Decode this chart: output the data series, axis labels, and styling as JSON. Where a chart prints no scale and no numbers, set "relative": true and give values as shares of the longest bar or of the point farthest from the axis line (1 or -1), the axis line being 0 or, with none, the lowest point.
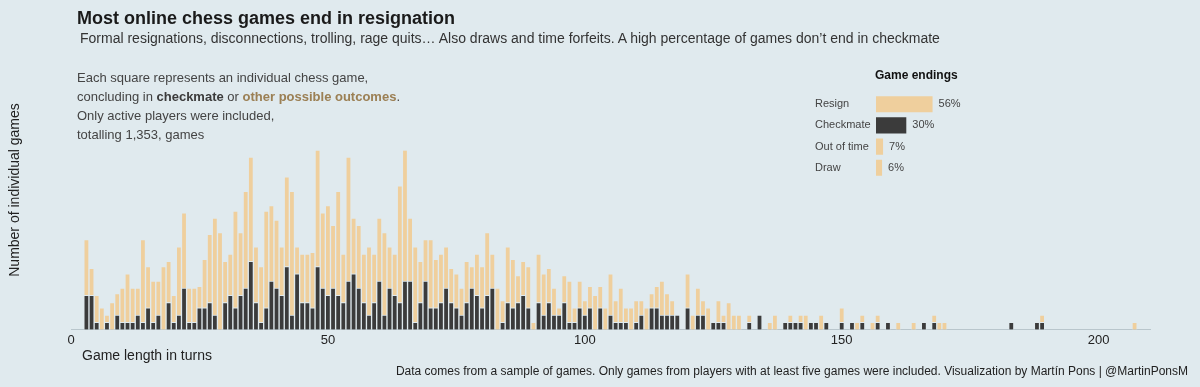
{
  "chart_data": [
    {
      "type": "bar",
      "title": "Most online chess games end in resignation",
      "subtitle": "Formal resignations, disconnections, trolling, rage quits… Also draws and time forfeits. A high percentage of games don’t end in checkmate",
      "xlabel": "Game length in turns",
      "ylabel": "Number of individual games",
      "annotations": [
        "Each square represents an individual chess game,",
        "concluding in ",
        " or ",
        ".",
        "Only active players were included,",
        "totalling 1,353, games",
        "Data comes from a sample of games. Only games from players with at least five games were included. Visualization by Martín Pons | @MartinPonsM"
      ],
      "stacked": true,
      "relative": true,
      "xlim": [
        0,
        210
      ],
      "xticks": [
        0,
        50,
        100,
        150,
        200
      ],
      "x": [
        3,
        4,
        5,
        6,
        7,
        8,
        9,
        10,
        11,
        12,
        13,
        14,
        15,
        16,
        17,
        18,
        19,
        20,
        21,
        22,
        23,
        24,
        25,
        26,
        27,
        28,
        29,
        30,
        31,
        32,
        33,
        34,
        35,
        36,
        37,
        38,
        39,
        40,
        41,
        42,
        43,
        44,
        45,
        46,
        47,
        48,
        49,
        50,
        51,
        52,
        53,
        54,
        55,
        56,
        57,
        58,
        59,
        60,
        61,
        62,
        63,
        64,
        65,
        66,
        67,
        68,
        69,
        70,
        71,
        72,
        73,
        74,
        75,
        76,
        77,
        78,
        79,
        80,
        81,
        82,
        83,
        84,
        85,
        86,
        87,
        88,
        89,
        90,
        91,
        92,
        93,
        94,
        95,
        96,
        97,
        98,
        99,
        100,
        101,
        102,
        103,
        104,
        105,
        106,
        107,
        108,
        109,
        110,
        111,
        112,
        113,
        114,
        115,
        116,
        117,
        118,
        120,
        121,
        122,
        123,
        124,
        125,
        126,
        127,
        128,
        129,
        130,
        132,
        134,
        136,
        137,
        139,
        140,
        141,
        142,
        143,
        144,
        145,
        146,
        147,
        150,
        152,
        153,
        154,
        156,
        157,
        159,
        161,
        164,
        166,
        168,
        169,
        170,
        183,
        188,
        189,
        207
      ],
      "series": [
        {
          "name": "checkmate",
          "color": "#3b3b3b",
          "values": [
            0.19,
            0.19,
            0.04,
            0,
            0.04,
            0,
            0.08,
            0.04,
            0.04,
            0.04,
            0.08,
            0.04,
            0.12,
            0.04,
            0.08,
            0,
            0.15,
            0.04,
            0.08,
            0.23,
            0.04,
            0.04,
            0.12,
            0.12,
            0.15,
            0.08,
            0,
            0.15,
            0.19,
            0.12,
            0.19,
            0.23,
            0.38,
            0.15,
            0.04,
            0.12,
            0.27,
            0.23,
            0.19,
            0.35,
            0.08,
            0.31,
            0.15,
            0.15,
            0.12,
            0.35,
            0.23,
            0.19,
            0.23,
            0.19,
            0.15,
            0.27,
            0.31,
            0.23,
            0.15,
            0.08,
            0.15,
            0.27,
            0.08,
            0.23,
            0.19,
            0.15,
            0.27,
            0.27,
            0.04,
            0.15,
            0.27,
            0.12,
            0.12,
            0.15,
            0.23,
            0.15,
            0.12,
            0.08,
            0.15,
            0.23,
            0.19,
            0.12,
            0.19,
            0.23,
            0,
            0.04,
            0.15,
            0.12,
            0.15,
            0.19,
            0.12,
            0,
            0.15,
            0.08,
            0.15,
            0.08,
            0.08,
            0.15,
            0.04,
            0.04,
            0.12,
            0.08,
            0.12,
            0,
            0.12,
            0,
            0.08,
            0.04,
            0.04,
            0.04,
            0,
            0.04,
            0.08,
            0,
            0.12,
            0.12,
            0.08,
            0.08,
            0.08,
            0.08,
            0.12,
            0,
            0.08,
            0.08,
            0,
            0.04,
            0.04,
            0.04,
            0,
            0,
            0,
            0.04,
            0.08,
            0,
            0,
            0.04,
            0.04,
            0.04,
            0.04,
            0,
            0.04,
            0.04,
            0,
            0.04,
            0.04,
            0.04,
            0,
            0.04,
            0,
            0.04,
            0.04,
            0,
            0,
            0.04,
            0.04,
            0,
            0,
            0.04,
            0.04,
            0.04,
            0
          ]
        },
        {
          "name": "other possible outcomes",
          "color": "#efcf9d",
          "values": [
            0.31,
            0.15,
            0.15,
            0.12,
            0.04,
            0.15,
            0.12,
            0.19,
            0.27,
            0.19,
            0.15,
            0.46,
            0.23,
            0.23,
            0.19,
            0.35,
            0.23,
            0.15,
            0.38,
            0.42,
            0.19,
            0.19,
            0.12,
            0.27,
            0.38,
            0.54,
            0.54,
            0.23,
            0.23,
            0.54,
            0.35,
            0.54,
            0.58,
            0.31,
            0.31,
            0.54,
            0.42,
            0.38,
            0.27,
            0.5,
            0.69,
            0.15,
            0.27,
            0.27,
            0.31,
            0.65,
            0.42,
            0.5,
            0.35,
            0.58,
            0.27,
            0.69,
            0.31,
            0.35,
            0.27,
            0.38,
            0.27,
            0.35,
            0.46,
            0.23,
            0.23,
            0.65,
            0.73,
            0.35,
            0.42,
            0.23,
            0.23,
            0.38,
            0.27,
            0.27,
            0.23,
            0.19,
            0.19,
            0.15,
            0.23,
            0.12,
            0.23,
            0.23,
            0.35,
            0.19,
            0.23,
            0.12,
            0.31,
            0.27,
            0.15,
            0.19,
            0.23,
            0.04,
            0.27,
            0.23,
            0.19,
            0.15,
            0.04,
            0.15,
            0.23,
            0.08,
            0.15,
            0.08,
            0.12,
            0.19,
            0.12,
            0.12,
            0.23,
            0.12,
            0.19,
            0.08,
            0.12,
            0.12,
            0.08,
            0.12,
            0.08,
            0.12,
            0.19,
            0.12,
            0.08,
            0,
            0.19,
            0.08,
            0.15,
            0.08,
            0.12,
            0,
            0.12,
            0.04,
            0.15,
            0.08,
            0.08,
            0.04,
            0,
            0.04,
            0.08,
            0,
            0.04,
            0,
            0.04,
            0.08,
            0,
            0,
            0.08,
            0,
            0.08,
            0,
            0.04,
            0.04,
            0.04,
            0.04,
            0,
            0.04,
            0.04,
            0,
            0.04,
            0.04,
            0.04,
            0,
            0,
            0.04,
            0.04
          ]
        }
      ]
    },
    {
      "type": "bar",
      "title": "Game endings",
      "orientation": "horizontal",
      "tick_labels": "y",
      "categories": [
        "Resign",
        "Checkmate",
        "Out of time",
        "Draw"
      ],
      "values": [
        56,
        30,
        7,
        6
      ],
      "colors": [
        "#efcf9d",
        "#3b3b3b",
        "#efcf9d",
        "#efcf9d"
      ],
      "value_labels": [
        "56%",
        "30%",
        "7%",
        "6%"
      ]
    }
  ]
}
